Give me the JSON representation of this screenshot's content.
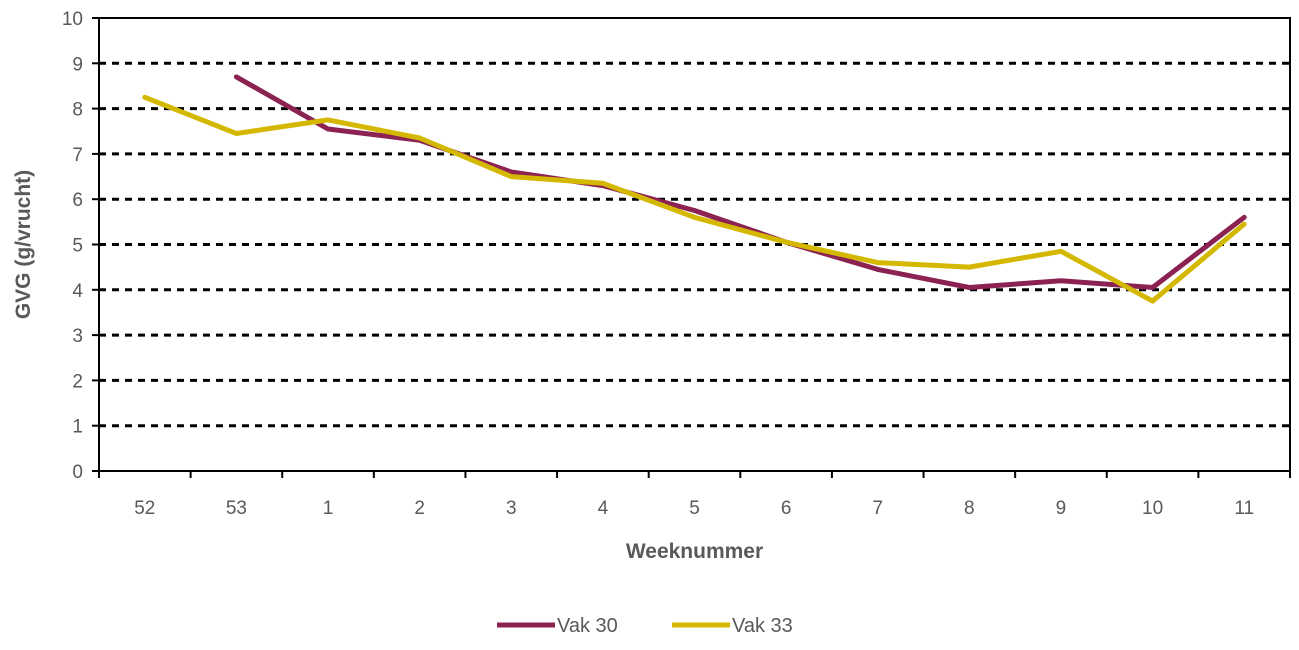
{
  "chart_data": {
    "type": "line",
    "title": "",
    "xlabel": "Weeknummer",
    "ylabel": "GVG (g/vrucht)",
    "categories": [
      "52",
      "53",
      "1",
      "2",
      "3",
      "4",
      "5",
      "6",
      "7",
      "8",
      "9",
      "10",
      "11"
    ],
    "ylim": [
      0,
      10
    ],
    "yticks": [
      "0",
      "1",
      "2",
      "3",
      "4",
      "5",
      "6",
      "7",
      "8",
      "9",
      "10"
    ],
    "grid": "horizontal-dashed",
    "legend_position": "bottom",
    "series": [
      {
        "name": "Vak 30",
        "color": "#8B2252",
        "values": [
          null,
          8.7,
          7.55,
          7.3,
          6.6,
          6.3,
          5.75,
          5.05,
          4.45,
          4.05,
          4.2,
          4.05,
          5.6
        ]
      },
      {
        "name": "Vak 33",
        "color": "#D4B800",
        "values": [
          8.25,
          7.45,
          7.75,
          7.35,
          6.5,
          6.35,
          5.6,
          5.05,
          4.6,
          4.5,
          4.85,
          3.75,
          5.45
        ]
      }
    ]
  }
}
